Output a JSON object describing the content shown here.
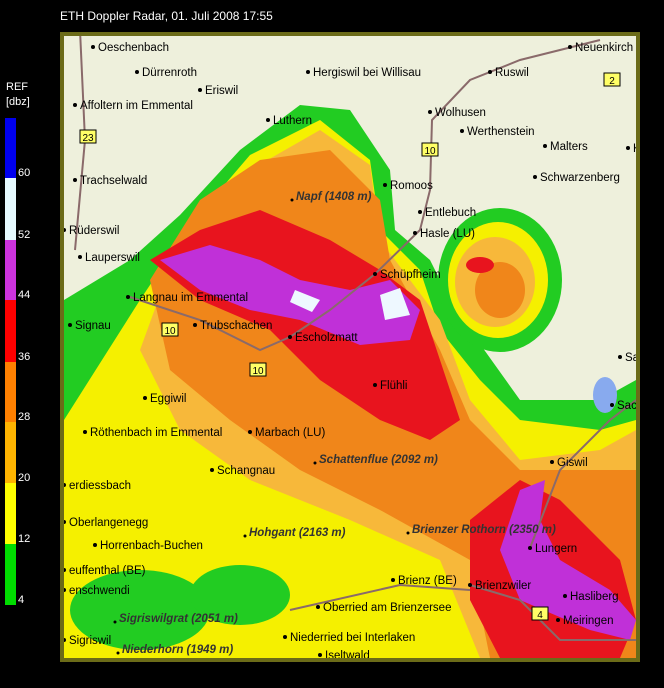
{
  "header": {
    "title": "ETH Doppler Radar, 01. Juli 2008 17:55"
  },
  "legend": {
    "title": "REF",
    "unit": "[dbz]",
    "levels": [
      "60",
      "52",
      "44",
      "36",
      "28",
      "20",
      "12",
      "4"
    ]
  },
  "map": {
    "places": [
      "Oeschenbach",
      "Dürrenroth",
      "Eriswil",
      "Hergiswil bei Willisau",
      "Ruswil",
      "Neuenkirch",
      "Affoltern im Emmental",
      "Luthern",
      "Wolhusen",
      "Werthenstein",
      "Malters",
      "Kriens",
      "Trachselwald",
      "Romoos",
      "Schwarzenberg",
      "Entlebuch",
      "Hasle (LU)",
      "Rüderswil",
      "Lauperswil",
      "Schüpfheim",
      "Langnau im Emmental",
      "Trubschachen",
      "Escholzmatt",
      "Signau",
      "Flühli",
      "Sarnen",
      "Eggiwil",
      "Sachseln",
      "Röthenbach im Emmental",
      "Marbach (LU)",
      "Giswil",
      "Schangnau",
      "erdiessbach",
      "Oberlangenegg",
      "Horrenbach-Buchen",
      "Lungern",
      "euffenthal (BE)",
      "enschwendi",
      "Brienz (BE)",
      "Brienzwiler",
      "Hasliberg",
      "Oberried am Brienzersee",
      "Meiringen",
      "Sigriswil",
      "Niederried bei Interlaken",
      "Iseltwald"
    ],
    "peaks": [
      "Napf (1408 m)",
      "Schattenflue (2092 m)",
      "Brienzer Rothorn (2350 m)",
      "Hohgant (2163 m)",
      "Sigriswilgrat (2051 m)",
      "Niederhorn (1949 m)"
    ],
    "road_signs": [
      "23",
      "10",
      "10",
      "10",
      "2",
      "4"
    ]
  }
}
